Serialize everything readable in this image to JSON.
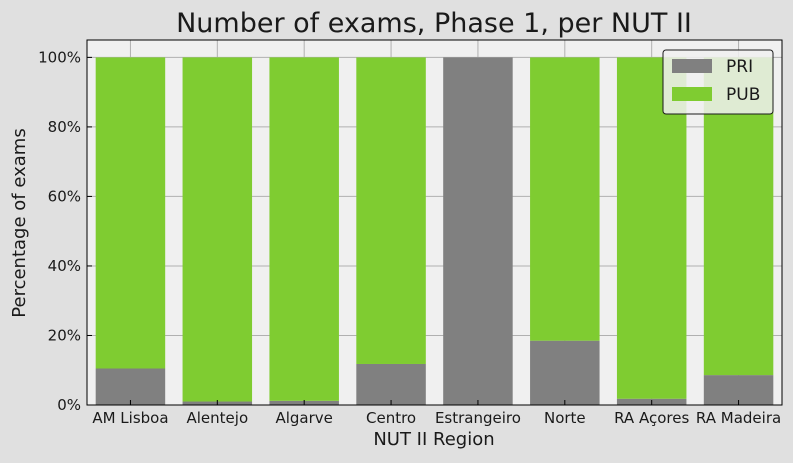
{
  "chart_data": {
    "type": "bar",
    "stacked": true,
    "title": "Number of exams, Phase 1, per NUT II",
    "xlabel": "NUT II Region",
    "ylabel": "Percentage of exams",
    "categories": [
      "AM Lisboa",
      "Alentejo",
      "Algarve",
      "Centro",
      "Estrangeiro",
      "Norte",
      "RA Açores",
      "RA Madeira"
    ],
    "series": [
      {
        "name": "PRI",
        "color": "#808080",
        "values": [
          10.5,
          1.0,
          1.2,
          11.8,
          100.0,
          18.5,
          1.8,
          8.6
        ]
      },
      {
        "name": "PUB",
        "color": "#7fcc31",
        "values": [
          89.5,
          99.0,
          98.8,
          88.2,
          0.0,
          81.5,
          98.2,
          91.4
        ]
      }
    ],
    "ylim": [
      0,
      105
    ],
    "yticks": [
      0,
      20,
      40,
      60,
      80,
      100
    ],
    "ytick_labels": [
      "0%",
      "20%",
      "40%",
      "60%",
      "80%",
      "100%"
    ],
    "grid": true,
    "legend_position": "top-right",
    "plot_background": "#f0f0f0",
    "figure_background": "#e0e0e0"
  }
}
